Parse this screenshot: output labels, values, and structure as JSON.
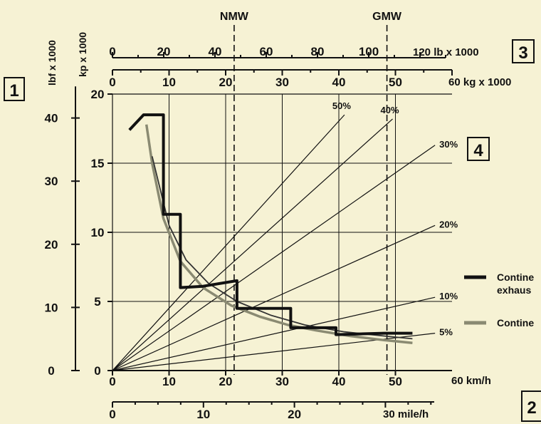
{
  "chart_data": {
    "type": "line",
    "boxes": [
      "1",
      "2",
      "3",
      "4"
    ],
    "left_axis_lbf": {
      "label": "lbf x 1000",
      "ticks": [
        "0",
        "10",
        "20",
        "30",
        "40"
      ],
      "values": [
        0,
        10,
        20,
        30,
        40
      ]
    },
    "left_axis_kp": {
      "label": "kp x 1000",
      "ticks": [
        "0",
        "5",
        "10",
        "15",
        "20"
      ],
      "values": [
        0,
        5,
        10,
        15,
        20
      ]
    },
    "bottom_axis_kmh": {
      "label": "60 km/h",
      "ticks": [
        "0",
        "10",
        "20",
        "30",
        "40",
        "50"
      ],
      "values": [
        0,
        10,
        20,
        30,
        40,
        50
      ]
    },
    "bottom_axis_mph": {
      "label": "30 mile/h",
      "ticks": [
        "0",
        "10",
        "20"
      ],
      "values": [
        0,
        10,
        20
      ]
    },
    "top_axis_lb": {
      "label": "120 lb x 1000",
      "ticks": [
        "0",
        "20",
        "40",
        "60",
        "80",
        "100"
      ],
      "values": [
        0,
        20,
        40,
        60,
        80,
        100
      ]
    },
    "top_axis_kg": {
      "label": "60 kg x 1000",
      "ticks": [
        "0",
        "10",
        "20",
        "30",
        "40",
        "50"
      ],
      "values": [
        0,
        10,
        20,
        30,
        40,
        50
      ]
    },
    "reference_lines": [
      {
        "label": "NMW",
        "kg": 21.5
      },
      {
        "label": "GMW",
        "kg": 48.5
      }
    ],
    "grade_lines": [
      {
        "label": "50%",
        "end": [
          41,
          18.5
        ]
      },
      {
        "label": "40%",
        "end": [
          49.5,
          18.2
        ]
      },
      {
        "label": "30%",
        "end": [
          57,
          16.3
        ]
      },
      {
        "label": "20%",
        "end": [
          57,
          10.5
        ]
      },
      {
        "label": "10%",
        "end": [
          57,
          5.3
        ]
      },
      {
        "label": "5%",
        "end": [
          57,
          2.7
        ]
      }
    ],
    "xlim_kmh": [
      0,
      60
    ],
    "ylim_kp": [
      0,
      20
    ],
    "series": [
      {
        "name": "Contine\nexhaus",
        "color": "#111111",
        "x": [
          3,
          5.5,
          9,
          9,
          12,
          12,
          16,
          22,
          22,
          31.5,
          31.5,
          39.5,
          39.5,
          48,
          53
        ],
        "y": [
          17.4,
          18.5,
          18.5,
          11.3,
          11.3,
          6.0,
          6.1,
          6.5,
          4.5,
          4.5,
          3.1,
          3.1,
          2.6,
          2.7,
          2.7
        ]
      },
      {
        "name": "Contine",
        "color": "#8a8a72",
        "x": [
          6,
          7,
          9,
          12,
          16,
          21,
          26,
          31,
          36,
          42,
          48,
          53
        ],
        "y": [
          17.8,
          15.0,
          11.0,
          7.9,
          6.0,
          4.7,
          3.9,
          3.3,
          2.9,
          2.5,
          2.2,
          2.0
        ]
      },
      {
        "name": "",
        "color": "#333333",
        "x": [
          7,
          10,
          13,
          17,
          22,
          28,
          34,
          41,
          48,
          53
        ],
        "y": [
          15.5,
          10.5,
          8.0,
          6.3,
          5.0,
          4.0,
          3.3,
          2.8,
          2.5,
          2.3
        ]
      }
    ]
  }
}
